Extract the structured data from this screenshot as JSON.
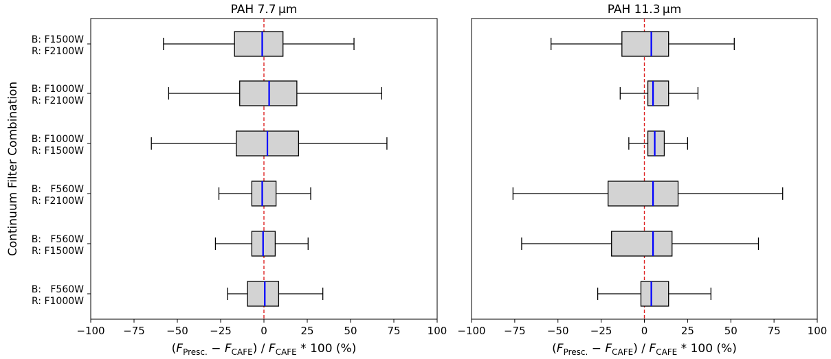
{
  "figure": {
    "ylabel": "Continuum Filter Combination"
  },
  "chart_data": [
    {
      "type": "boxplot",
      "orientation": "horizontal",
      "title": "PAH 7.7 μm",
      "xlabel": "(F_Presc. − F_CAFE) / F_CAFE * 100 (%)",
      "xlim": [
        -100,
        100
      ],
      "xticks": [
        "−100",
        "−75",
        "−50",
        "−25",
        "0",
        "25",
        "50",
        "75",
        "100"
      ],
      "xtick_values": [
        -100,
        -75,
        -50,
        -25,
        0,
        25,
        50,
        75,
        100
      ],
      "reference_line": {
        "x": 0,
        "color": "#dd2222",
        "style": "dashed"
      },
      "categories": [
        {
          "line1": "B: F1500W",
          "line2": "R: F2100W"
        },
        {
          "line1": "B: F1000W",
          "line2": "R: F2100W"
        },
        {
          "line1": "B: F1000W",
          "line2": "R: F1500W"
        },
        {
          "line1": "B:   F560W",
          "line2": "R: F2100W"
        },
        {
          "line1": "B:   F560W",
          "line2": "R: F1500W"
        },
        {
          "line1": "B:   F560W",
          "line2": "R: F1000W"
        }
      ],
      "boxes": [
        {
          "whisker_low": -58,
          "q1": -17,
          "median": -1,
          "q3": 11,
          "whisker_high": 52
        },
        {
          "whisker_low": -55,
          "q1": -14,
          "median": 3,
          "q3": 19,
          "whisker_high": 68
        },
        {
          "whisker_low": -65,
          "q1": -16,
          "median": 2,
          "q3": 20,
          "whisker_high": 71
        },
        {
          "whisker_low": -26,
          "q1": -7,
          "median": -1,
          "q3": 7,
          "whisker_high": 27
        },
        {
          "whisker_low": -28,
          "q1": -7,
          "median": -0.5,
          "q3": 6.5,
          "whisker_high": 25.5
        },
        {
          "whisker_low": -21,
          "q1": -9.5,
          "median": 0.5,
          "q3": 8.5,
          "whisker_high": 34
        }
      ]
    },
    {
      "type": "boxplot",
      "orientation": "horizontal",
      "title": "PAH 11.3 μm",
      "xlabel": "(F_Presc. − F_CAFE) / F_CAFE * 100 (%)",
      "xlim": [
        -100,
        100
      ],
      "xticks": [
        "−100",
        "−75",
        "−50",
        "−25",
        "0",
        "25",
        "50",
        "75",
        "100"
      ],
      "xtick_values": [
        -100,
        -75,
        -50,
        -25,
        0,
        25,
        50,
        75,
        100
      ],
      "reference_line": {
        "x": 0,
        "color": "#dd2222",
        "style": "dashed"
      },
      "boxes": [
        {
          "whisker_low": -54,
          "q1": -13,
          "median": 4,
          "q3": 14,
          "whisker_high": 52
        },
        {
          "whisker_low": -14,
          "q1": 2,
          "median": 5,
          "q3": 14,
          "whisker_high": 31
        },
        {
          "whisker_low": -9,
          "q1": 2,
          "median": 6,
          "q3": 11.5,
          "whisker_high": 25
        },
        {
          "whisker_low": -76,
          "q1": -21,
          "median": 5,
          "q3": 19.5,
          "whisker_high": 80
        },
        {
          "whisker_low": -71,
          "q1": -19,
          "median": 5,
          "q3": 16,
          "whisker_high": 66
        },
        {
          "whisker_low": -27,
          "q1": -2,
          "median": 4,
          "q3": 14,
          "whisker_high": 38.5
        }
      ]
    }
  ],
  "colors": {
    "box_fill": "#d3d3d3",
    "box_edge": "#000000",
    "median": "#0000ff",
    "reference_line": "#dd2222"
  }
}
